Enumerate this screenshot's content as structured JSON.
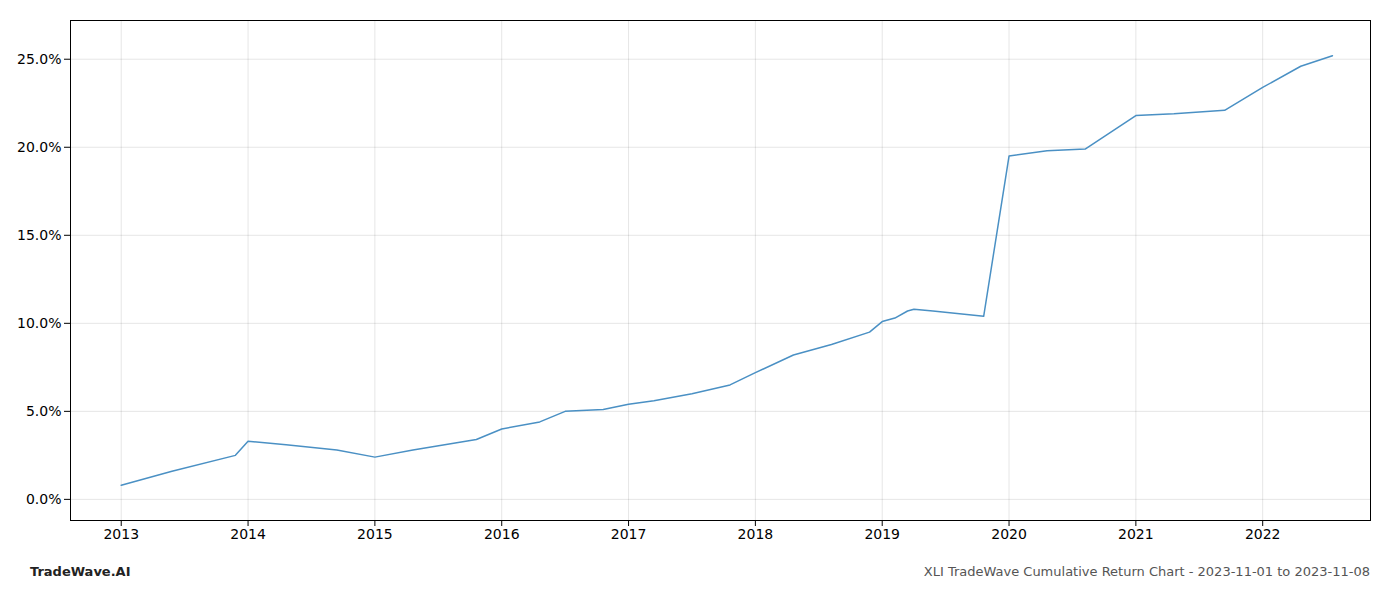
{
  "chart_data": {
    "type": "line",
    "x": [
      2013.0,
      2013.4,
      2013.9,
      2014.0,
      2014.3,
      2014.7,
      2015.0,
      2015.3,
      2015.8,
      2016.0,
      2016.3,
      2016.5,
      2016.8,
      2017.0,
      2017.2,
      2017.5,
      2017.8,
      2018.0,
      2018.3,
      2018.6,
      2018.9,
      2019.0,
      2019.1,
      2019.2,
      2019.25,
      2019.4,
      2019.8,
      2020.0,
      2020.3,
      2020.6,
      2021.0,
      2021.3,
      2021.7,
      2022.0,
      2022.3,
      2022.55
    ],
    "values": [
      0.008,
      0.016,
      0.025,
      0.033,
      0.031,
      0.028,
      0.024,
      0.028,
      0.034,
      0.04,
      0.044,
      0.05,
      0.051,
      0.054,
      0.056,
      0.06,
      0.065,
      0.072,
      0.082,
      0.088,
      0.095,
      0.101,
      0.103,
      0.107,
      0.108,
      0.107,
      0.104,
      0.195,
      0.198,
      0.199,
      0.218,
      0.219,
      0.221,
      0.234,
      0.246,
      0.252
    ],
    "color": "#4a90c4",
    "grid": true,
    "xlim": [
      2012.6,
      2022.85
    ],
    "xticks": [
      2013,
      2014,
      2015,
      2016,
      2017,
      2018,
      2019,
      2020,
      2021,
      2022
    ],
    "ylim": [
      -0.012,
      0.272
    ],
    "yticks": [
      {
        "value": 0.0,
        "label": "0.0%"
      },
      {
        "value": 0.05,
        "label": "5.0%"
      },
      {
        "value": 0.1,
        "label": "10.0%"
      },
      {
        "value": 0.15,
        "label": "15.0%"
      },
      {
        "value": 0.2,
        "label": "20.0%"
      },
      {
        "value": 0.25,
        "label": "25.0%"
      }
    ],
    "annotations": [
      "TradeWave.AI",
      "XLI TradeWave Cumulative Return Chart - 2023-11-01 to 2023-11-08"
    ]
  }
}
